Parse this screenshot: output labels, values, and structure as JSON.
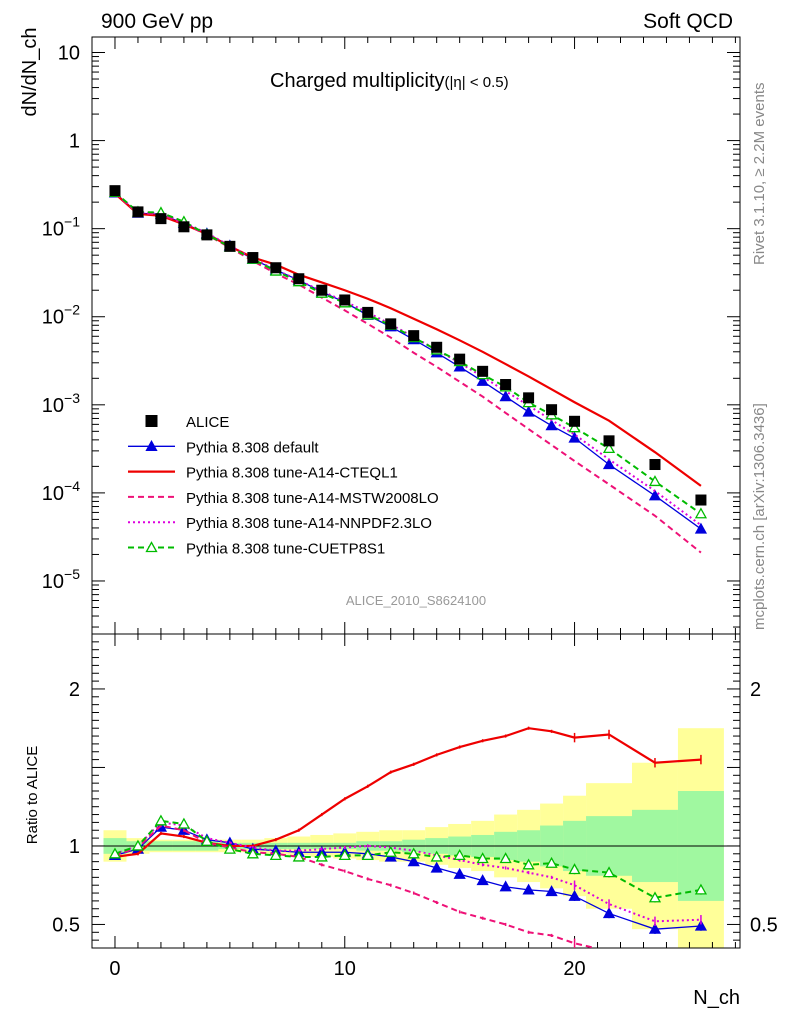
{
  "chart_data": {
    "type": "line",
    "header_left": "900 GeV pp",
    "header_right": "Soft QCD",
    "title": "Charged multiplicity",
    "title_suffix": "(|η| < 0.5)",
    "ylabel_top": "dN/dN_ch",
    "ylabel_bottom": "Ratio to ALICE",
    "xlabel": "N_ch",
    "analysis_label": "ALICE_2010_S8624100",
    "side_label_top": "Rivet 3.1.10, ≥ 2.2M events",
    "side_label_bottom": "mcplots.cern.ch [arXiv:1306.3436]",
    "y_scale": "log",
    "xlim": [
      -1,
      27.2
    ],
    "ylim_top": [
      2.5e-06,
      15
    ],
    "ylim_bottom": [
      0.35,
      2.35
    ],
    "x_ticks": [
      "0",
      "10",
      "20"
    ],
    "y_ticks_top": [
      "10",
      "1",
      "10^-1",
      "10^-2",
      "10^-3",
      "10^-4",
      "10^-5"
    ],
    "y_ticks_bottom": [
      "0.5",
      "1",
      "2"
    ],
    "legend_position": "lower-left",
    "x": [
      0,
      1,
      2,
      3,
      4,
      5,
      6,
      7,
      8,
      9,
      10,
      11,
      12,
      13,
      14,
      15,
      16,
      17,
      18,
      19,
      20,
      21.5,
      23.5,
      25.5
    ],
    "data": {
      "name": "ALICE",
      "color": "#000000",
      "values": [
        0.27,
        0.155,
        0.13,
        0.105,
        0.085,
        0.063,
        0.047,
        0.036,
        0.027,
        0.02,
        0.0155,
        0.0112,
        0.0083,
        0.0061,
        0.0045,
        0.0033,
        0.0024,
        0.0017,
        0.0012,
        0.00088,
        0.00065,
        0.00039,
        0.00021,
        8.3e-05
      ]
    },
    "series": [
      {
        "name": "Pythia 8.308 default",
        "color": "#0000dd",
        "dash": "solid",
        "marker": "filled-triangle",
        "values": [
          0.255,
          0.15,
          0.145,
          0.115,
          0.088,
          0.064,
          0.045,
          0.034,
          0.026,
          0.0192,
          0.0146,
          0.0104,
          0.0077,
          0.0055,
          0.0039,
          0.0027,
          0.00185,
          0.00124,
          0.00083,
          0.00058,
          0.00042,
          0.00021,
          9.3e-05,
          3.9e-05
        ],
        "ratio": [
          0.94,
          0.98,
          1.12,
          1.1,
          1.04,
          1.02,
          0.98,
          0.97,
          0.96,
          0.96,
          0.96,
          0.95,
          0.93,
          0.9,
          0.86,
          0.82,
          0.78,
          0.74,
          0.72,
          0.71,
          0.68,
          0.57,
          0.47,
          0.49
        ]
      },
      {
        "name": "Pythia 8.308 tune-A14-CTEQL1",
        "color": "#ee0000",
        "dash": "solid",
        "marker": "none",
        "values": [
          0.25,
          0.147,
          0.14,
          0.112,
          0.087,
          0.063,
          0.047,
          0.039,
          0.03,
          0.0245,
          0.02,
          0.016,
          0.0125,
          0.0095,
          0.0072,
          0.0054,
          0.004,
          0.0029,
          0.0021,
          0.0015,
          0.00107,
          0.00066,
          0.00029,
          0.00012
        ],
        "ratio": [
          0.93,
          0.95,
          1.08,
          1.06,
          1.02,
          1.0,
          1.0,
          1.04,
          1.1,
          1.2,
          1.3,
          1.38,
          1.47,
          1.52,
          1.58,
          1.63,
          1.67,
          1.7,
          1.75,
          1.73,
          1.69,
          1.71,
          1.53,
          1.55
        ]
      },
      {
        "name": "Pythia 8.308 tune-A14-MSTW2008LO",
        "color": "#ee1177",
        "dash": "dashed",
        "marker": "none",
        "values": [
          0.255,
          0.15,
          0.145,
          0.114,
          0.085,
          0.061,
          0.043,
          0.031,
          0.0232,
          0.0165,
          0.0118,
          0.0083,
          0.0058,
          0.0039,
          0.0027,
          0.00183,
          0.00124,
          0.00081,
          0.00053,
          0.00035,
          0.00023,
          0.000125,
          5.5e-05,
          2.1e-05
        ],
        "ratio": [
          0.94,
          0.99,
          1.13,
          1.1,
          1.02,
          0.99,
          0.96,
          0.95,
          0.93,
          0.88,
          0.84,
          0.79,
          0.75,
          0.7,
          0.64,
          0.58,
          0.54,
          0.5,
          0.45,
          0.43,
          0.38,
          0.33,
          0.3,
          0.27
        ]
      },
      {
        "name": "Pythia 8.308 tune-A14-NNPDF2.3LO",
        "color": "#dd00dd",
        "dash": "dotted",
        "marker": "none",
        "values": [
          0.258,
          0.152,
          0.15,
          0.118,
          0.089,
          0.064,
          0.046,
          0.034,
          0.026,
          0.0195,
          0.015,
          0.0112,
          0.0082,
          0.0059,
          0.0042,
          0.003,
          0.00208,
          0.00143,
          0.00098,
          0.00067,
          0.00046,
          0.00024,
          0.000105,
          4.3e-05
        ],
        "ratio": [
          0.95,
          1.0,
          1.15,
          1.13,
          1.05,
          1.02,
          0.99,
          0.97,
          0.97,
          0.98,
          0.99,
          1.0,
          0.99,
          0.97,
          0.94,
          0.91,
          0.88,
          0.86,
          0.83,
          0.8,
          0.75,
          0.63,
          0.52,
          0.53
        ]
      },
      {
        "name": "Pythia 8.308 tune-CUETP8S1",
        "color": "#00bb00",
        "dash": "dashed",
        "marker": "open-triangle",
        "values": [
          0.258,
          0.155,
          0.152,
          0.12,
          0.086,
          0.062,
          0.045,
          0.033,
          0.025,
          0.0185,
          0.0144,
          0.0105,
          0.008,
          0.0058,
          0.0042,
          0.0031,
          0.0022,
          0.0016,
          0.00106,
          0.00077,
          0.00055,
          0.00032,
          0.000135,
          5.8e-05
        ],
        "ratio": [
          0.95,
          1.0,
          1.16,
          1.14,
          1.03,
          0.98,
          0.95,
          0.94,
          0.93,
          0.93,
          0.94,
          0.94,
          0.96,
          0.95,
          0.93,
          0.94,
          0.92,
          0.92,
          0.88,
          0.89,
          0.85,
          0.83,
          0.67,
          0.72
        ]
      }
    ],
    "ratio_band": {
      "x_edges": [
        -0.5,
        0.5,
        1.5,
        2.5,
        3.5,
        4.5,
        5.5,
        6.5,
        7.5,
        8.5,
        9.5,
        10.5,
        11.5,
        12.5,
        13.5,
        14.5,
        15.5,
        16.5,
        17.5,
        18.5,
        19.5,
        20.5,
        22.5,
        24.5,
        26.5
      ],
      "stat_halfwidth": [
        0.05,
        0.03,
        0.03,
        0.03,
        0.03,
        0.02,
        0.02,
        0.02,
        0.02,
        0.02,
        0.02,
        0.03,
        0.03,
        0.04,
        0.05,
        0.06,
        0.07,
        0.09,
        0.1,
        0.13,
        0.16,
        0.19,
        0.23,
        0.35
      ],
      "total_halfwidth": [
        0.1,
        0.05,
        0.04,
        0.04,
        0.04,
        0.04,
        0.04,
        0.05,
        0.06,
        0.07,
        0.08,
        0.09,
        0.1,
        0.1,
        0.12,
        0.14,
        0.16,
        0.2,
        0.23,
        0.27,
        0.32,
        0.4,
        0.53,
        0.75
      ],
      "stat_color": "#a0f8a0",
      "total_color": "#ffff99"
    }
  }
}
